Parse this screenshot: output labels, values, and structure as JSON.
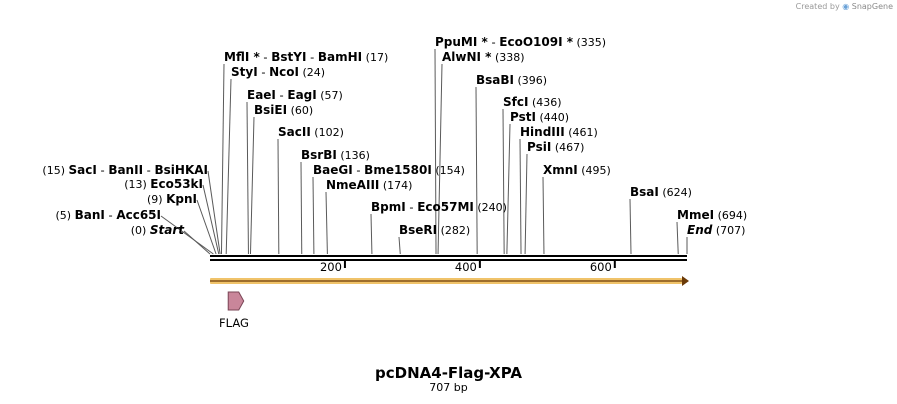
{
  "credit": {
    "prefix": "Created by",
    "brand": "SnapGene"
  },
  "sequence": {
    "name": "pcDNA4-Flag-XPA",
    "length_label": "707 bp",
    "length": 707
  },
  "ticks": [
    {
      "pos": 200,
      "label": "200"
    },
    {
      "pos": 400,
      "label": "400"
    },
    {
      "pos": 600,
      "label": "600"
    }
  ],
  "features": [
    {
      "name": "FLAG",
      "start": 27,
      "end": 50,
      "color": "#c9869a",
      "direction": "forward"
    }
  ],
  "orf": {
    "start": 0,
    "end": 707,
    "color": "#f0c36a",
    "direction": "forward"
  },
  "sites": [
    {
      "parts": [
        "Start"
      ],
      "pos": 0,
      "pos_label": "(0)",
      "italic": true
    },
    {
      "parts": [
        "BanI",
        "Acc65I"
      ],
      "pos": 5,
      "pos_label": "(5)"
    },
    {
      "parts": [
        "KpnI"
      ],
      "pos": 9,
      "pos_label": "(9)"
    },
    {
      "parts": [
        "Eco53kI"
      ],
      "pos": 13,
      "pos_label": "(13)"
    },
    {
      "parts": [
        "SacI",
        "BanII",
        "BsiHKAI"
      ],
      "pos": 15,
      "pos_label": "(15)"
    },
    {
      "parts": [
        "MflI *",
        "BstYI",
        "BamHI"
      ],
      "pos": 17,
      "pos_label": "(17)"
    },
    {
      "parts": [
        "StyI",
        "NcoI"
      ],
      "pos": 24,
      "pos_label": "(24)"
    },
    {
      "parts": [
        "EaeI",
        "EagI"
      ],
      "pos": 57,
      "pos_label": "(57)"
    },
    {
      "parts": [
        "BsiEI"
      ],
      "pos": 60,
      "pos_label": "(60)"
    },
    {
      "parts": [
        "SacII"
      ],
      "pos": 102,
      "pos_label": "(102)"
    },
    {
      "parts": [
        "BsrBI"
      ],
      "pos": 136,
      "pos_label": "(136)"
    },
    {
      "parts": [
        "BaeGI",
        "Bme1580I"
      ],
      "pos": 154,
      "pos_label": "(154)"
    },
    {
      "parts": [
        "NmeAIII"
      ],
      "pos": 174,
      "pos_label": "(174)"
    },
    {
      "parts": [
        "BpmI",
        "Eco57MI"
      ],
      "pos": 240,
      "pos_label": "(240)"
    },
    {
      "parts": [
        "BseRI"
      ],
      "pos": 282,
      "pos_label": "(282)"
    },
    {
      "parts": [
        "PpuMI *",
        "EcoO109I *"
      ],
      "pos": 335,
      "pos_label": "(335)"
    },
    {
      "parts": [
        "AlwNI *"
      ],
      "pos": 338,
      "pos_label": "(338)"
    },
    {
      "parts": [
        "BsaBI"
      ],
      "pos": 396,
      "pos_label": "(396)"
    },
    {
      "parts": [
        "SfcI"
      ],
      "pos": 436,
      "pos_label": "(436)"
    },
    {
      "parts": [
        "PstI"
      ],
      "pos": 440,
      "pos_label": "(440)"
    },
    {
      "parts": [
        "HindIII"
      ],
      "pos": 461,
      "pos_label": "(461)"
    },
    {
      "parts": [
        "PsiI"
      ],
      "pos": 467,
      "pos_label": "(467)"
    },
    {
      "parts": [
        "XmnI"
      ],
      "pos": 495,
      "pos_label": "(495)"
    },
    {
      "parts": [
        "BsaI"
      ],
      "pos": 624,
      "pos_label": "(624)"
    },
    {
      "parts": [
        "MmeI"
      ],
      "pos": 694,
      "pos_label": "(694)"
    },
    {
      "parts": [
        "End"
      ],
      "pos": 707,
      "pos_label": "(707)",
      "italic": true
    }
  ]
}
